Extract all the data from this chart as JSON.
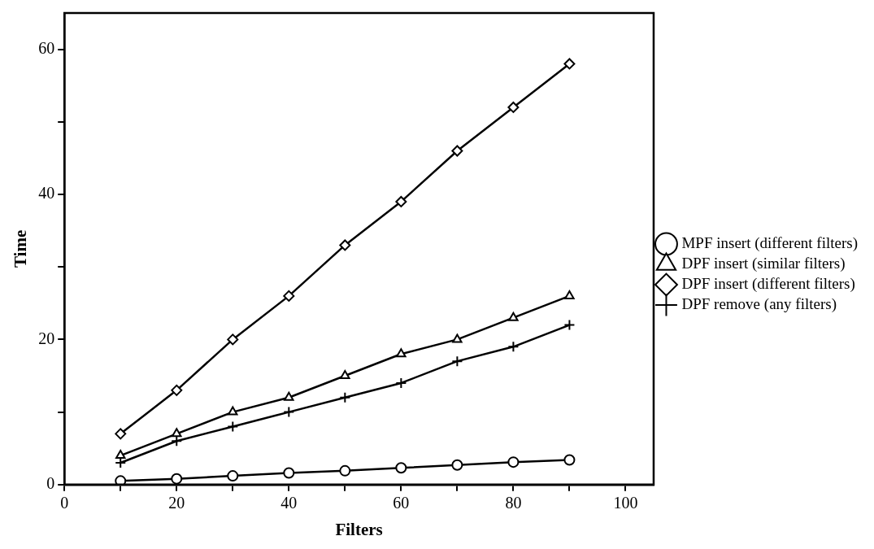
{
  "chart_data": {
    "type": "line",
    "xlabel": "Filters",
    "ylabel": "Time",
    "x": [
      10,
      20,
      30,
      40,
      50,
      60,
      70,
      80,
      90
    ],
    "series": [
      {
        "name": "MPF insert (different filters)",
        "color": "#000000",
        "marker": "circle",
        "values": [
          0.5,
          0.8,
          1.2,
          1.6,
          1.9,
          2.3,
          2.7,
          3.1,
          3.4
        ]
      },
      {
        "name": "DPF insert (similar filters)",
        "color": "#000000",
        "marker": "triangle",
        "values": [
          4,
          7,
          10,
          12,
          15,
          18,
          20,
          23,
          26
        ]
      },
      {
        "name": "DPF insert (different filters)",
        "color": "#000000",
        "marker": "diamond",
        "values": [
          7,
          13,
          20,
          26,
          33,
          39,
          46,
          52,
          58
        ]
      },
      {
        "name": "DPF remove (any filters)",
        "color": "#000000",
        "marker": "cross",
        "values": [
          3,
          6,
          8,
          10,
          12,
          14,
          17,
          19,
          22
        ]
      }
    ],
    "xlim": [
      0,
      105
    ],
    "ylim": [
      0,
      65
    ],
    "xticks": [
      0,
      {
        "value": 10,
        "label": null
      },
      20,
      {
        "value": 30,
        "label": null
      },
      40,
      {
        "value": 50,
        "label": null
      },
      60,
      {
        "value": 70,
        "label": null
      },
      80,
      {
        "value": 90,
        "label": null
      },
      100
    ],
    "yticks": [
      0,
      {
        "value": 10,
        "label": null
      },
      20,
      {
        "value": 30,
        "label": null
      },
      40,
      {
        "value": 50,
        "label": null
      },
      60
    ],
    "legend": "right"
  }
}
